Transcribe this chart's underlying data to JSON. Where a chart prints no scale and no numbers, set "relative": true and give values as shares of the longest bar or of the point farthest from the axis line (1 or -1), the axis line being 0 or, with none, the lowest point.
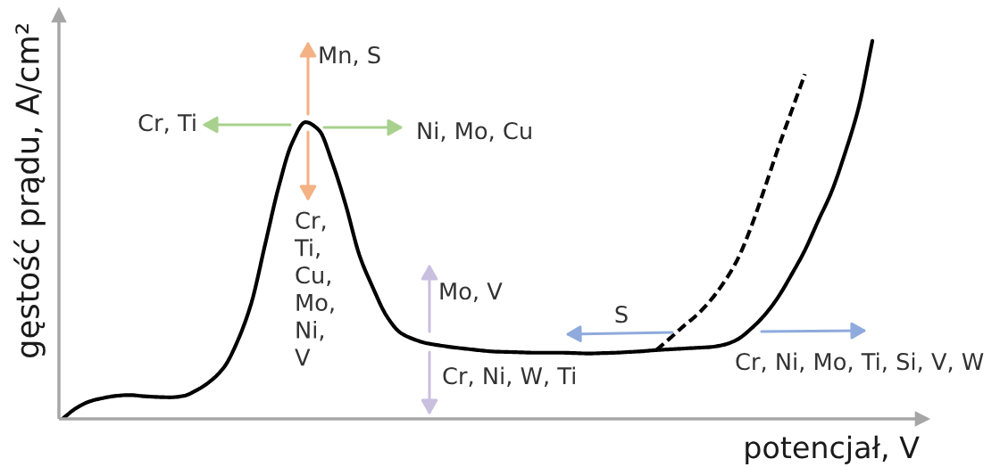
{
  "chart_data": {
    "type": "line",
    "relative": true,
    "xlabel": "potencjał, V",
    "ylabel": "gęstość prądu, A/cm²",
    "categories": [
      null,
      null,
      null,
      null,
      null,
      null,
      null,
      null,
      null,
      null,
      null,
      null,
      null,
      null,
      null,
      null,
      null,
      null,
      null,
      null,
      null,
      null,
      null,
      null,
      null,
      null,
      null,
      null,
      null,
      null,
      null,
      null,
      null,
      null,
      null,
      null,
      null,
      null,
      null,
      null,
      null,
      null,
      null,
      null,
      null,
      null,
      null,
      null,
      null,
      null,
      null,
      null,
      null,
      null,
      null,
      null,
      null,
      null,
      null,
      null,
      null
    ],
    "series": [
      {
        "color": "#000000",
        "line_style": "solid",
        "values": [
          0,
          0.028,
          0.046,
          0.055,
          0.061,
          0.063,
          0.06,
          0.058,
          0.057,
          0.061,
          0.077,
          0.101,
          0.138,
          0.208,
          0.307,
          0.459,
          0.611,
          0.729,
          0.785,
          0.764,
          0.677,
          0.564,
          0.433,
          0.347,
          0.273,
          0.229,
          0.211,
          0.2,
          0.194,
          0.189,
          0.185,
          0.181,
          0.178,
          0.177,
          0.176,
          0.175,
          0.175,
          0.175,
          0.174,
          0.173,
          0.174,
          0.175,
          0.177,
          0.179,
          0.182,
          0.184,
          0.186,
          0.188,
          0.19,
          0.196,
          0.21,
          0.238,
          0.274,
          0.321,
          0.381,
          0.446,
          0.525,
          0.603,
          0.706,
          0.826,
          1
        ]
      },
      {
        "color": "#000000",
        "line_style": "dashed",
        "values": [
          null,
          null,
          null,
          null,
          null,
          null,
          null,
          null,
          null,
          null,
          null,
          null,
          null,
          null,
          null,
          null,
          null,
          null,
          null,
          null,
          null,
          null,
          null,
          null,
          null,
          null,
          null,
          null,
          null,
          null,
          null,
          null,
          null,
          null,
          null,
          null,
          null,
          null,
          null,
          null,
          null,
          null,
          null,
          null,
          0.182,
          0.213,
          0.245,
          0.275,
          0.313,
          0.361,
          0.421,
          0.506,
          0.608,
          0.714,
          0.813,
          0.912,
          null,
          null,
          null,
          null,
          null
        ]
      }
    ],
    "annotations": [
      "Mn, S",
      "Cr, Ti",
      "Ni, Mo, Cu",
      "Cr,\nTi,\nCu,\nMo,\nNi,\nV",
      "Mo, V",
      "Cr, Ni, W, Ti",
      "S",
      "Cr, Ni, Mo, Ti, Si, V, W"
    ]
  }
}
